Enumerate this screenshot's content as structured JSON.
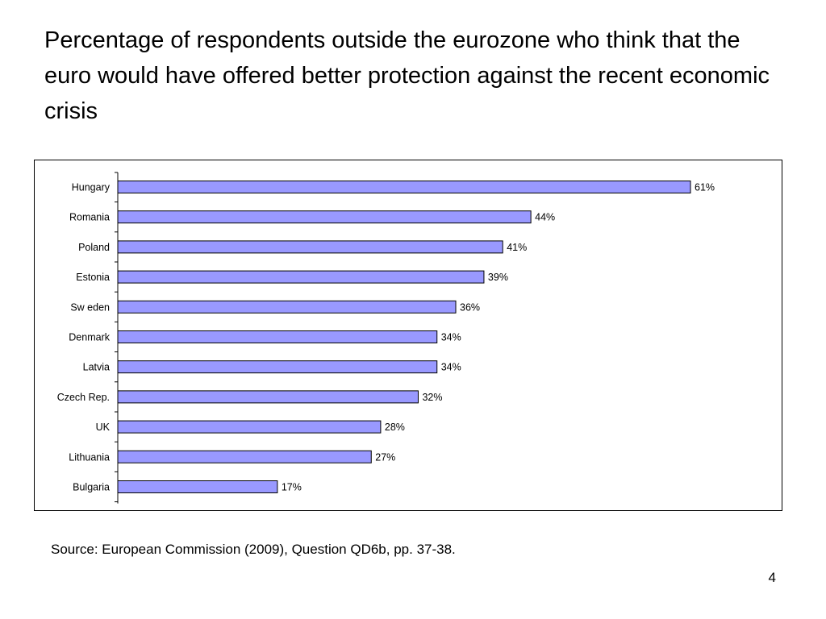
{
  "slide": {
    "title": "Percentage of respondents outside the eurozone who think that the euro would have offered better protection against the recent economic crisis",
    "source": "Source: European Commission (2009), Question QD6b, pp. 37-38.",
    "page_number": "4"
  },
  "chart_data": {
    "type": "bar",
    "orientation": "horizontal",
    "title": "",
    "xlabel": "",
    "ylabel": "",
    "xlim": [
      0,
      61
    ],
    "grid": false,
    "legend": "none",
    "bar_color": "#9999ff",
    "bar_edge_color": "#000000",
    "categories": [
      "Hungary",
      "Romania",
      "Poland",
      "Estonia",
      "Sw eden",
      "Denmark",
      "Latvia",
      "Czech Rep.",
      "UK",
      "Lithuania",
      "Bulgaria"
    ],
    "values": [
      61,
      44,
      41,
      39,
      36,
      34,
      34,
      32,
      28,
      27,
      17
    ],
    "data_labels": [
      "61%",
      "44%",
      "41%",
      "39%",
      "36%",
      "34%",
      "34%",
      "32%",
      "28%",
      "27%",
      "17%"
    ]
  }
}
